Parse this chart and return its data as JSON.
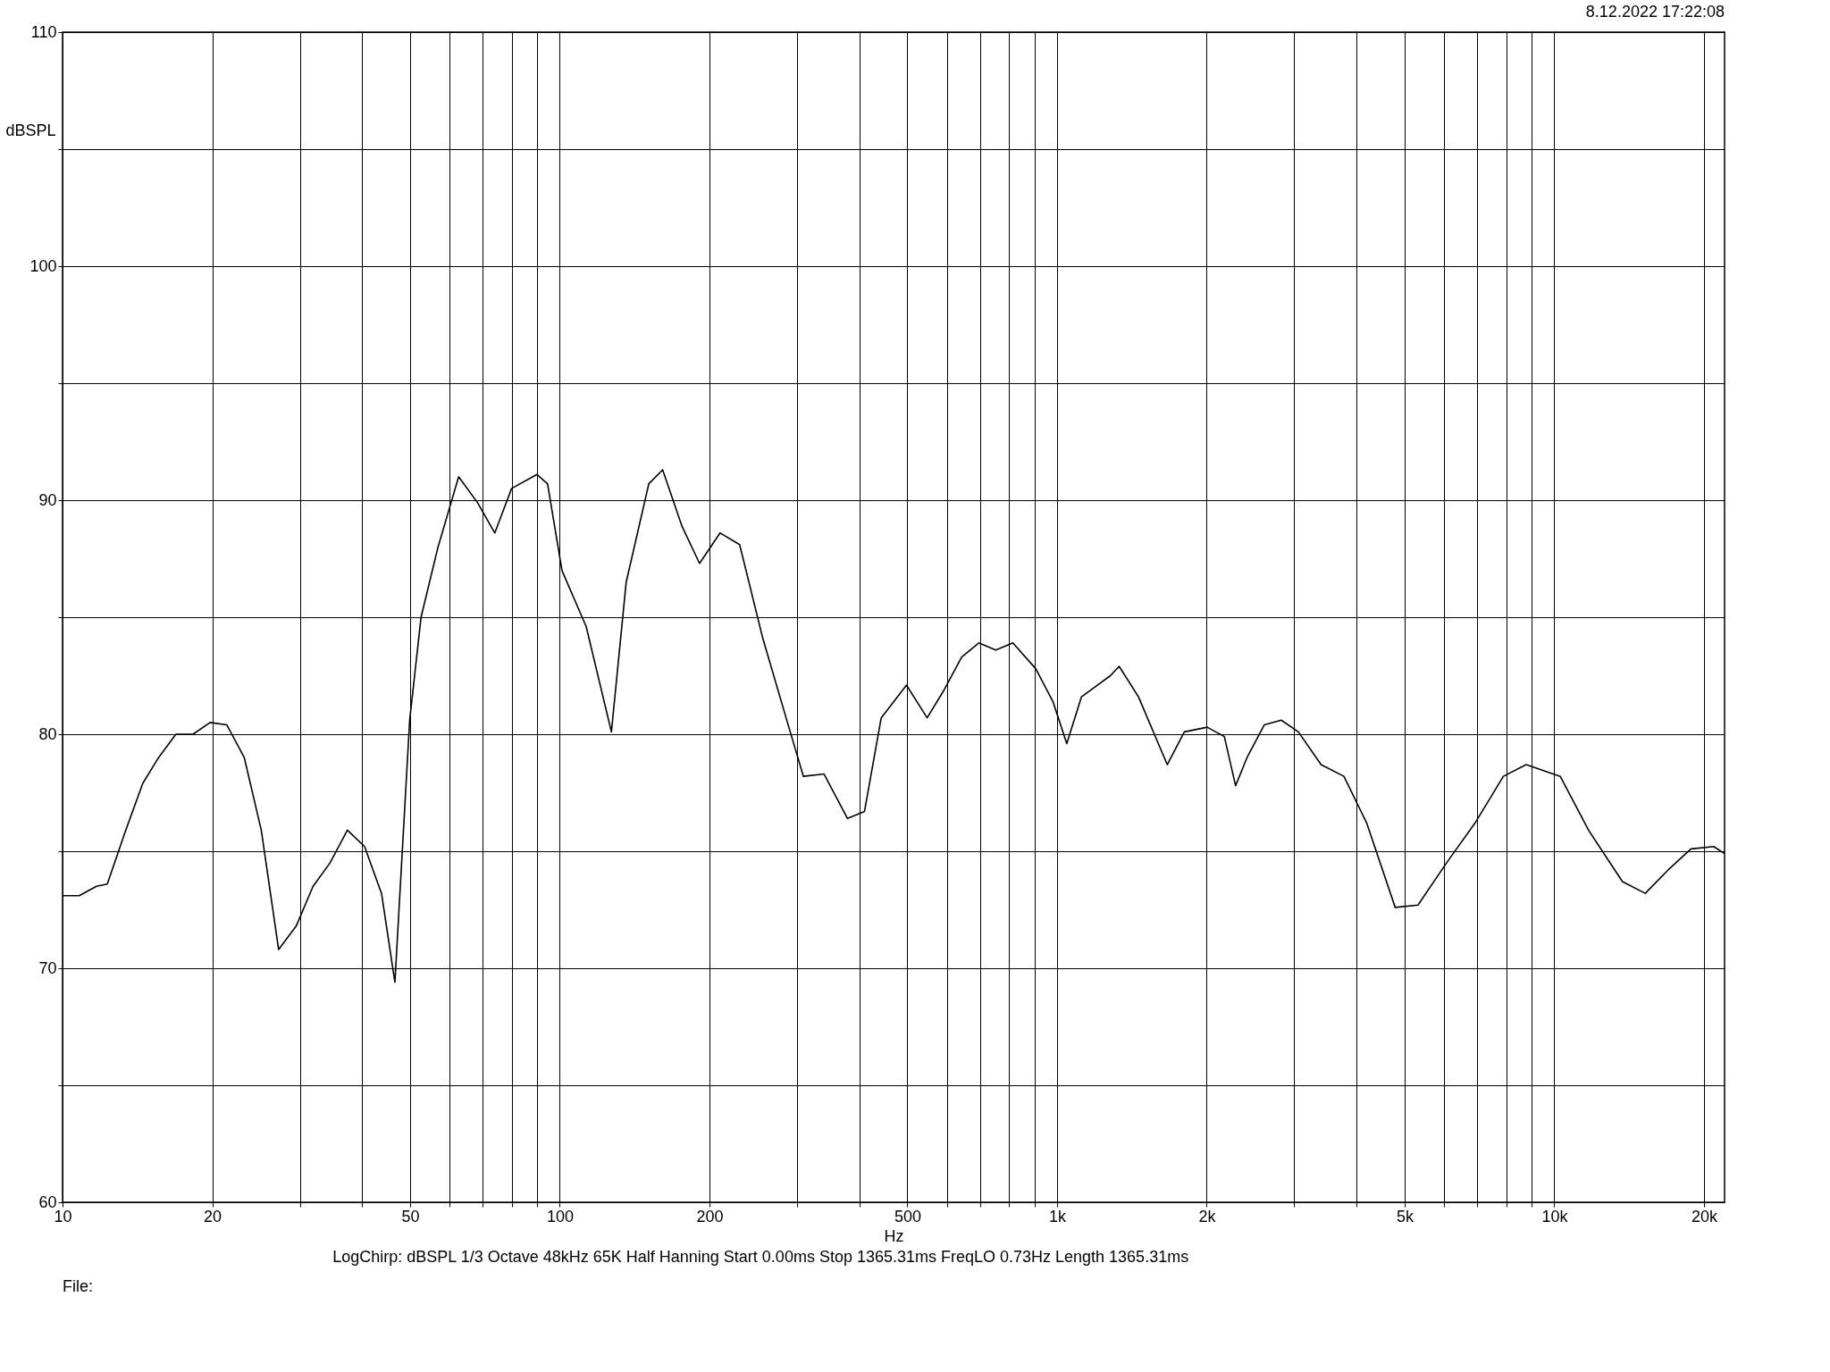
{
  "chart_data": {
    "type": "line",
    "xlabel": "Hz",
    "ylabel": "dBSPL",
    "annotations": [
      "8.12.2022 17:22:08",
      "LogChirp:  dBSPL   1/3 Octave   48kHz   65K   Half Hanning   Start 0.00ms   Stop 1365.31ms   FreqLO 0.73Hz   Length 1365.31ms",
      "File:"
    ],
    "log": "x",
    "grid": true,
    "marker": "none",
    "line_style": "solid",
    "xlim": [
      10,
      22000
    ],
    "ylim": [
      60,
      110
    ],
    "xticks": [
      10,
      20,
      {
        "value": 30,
        "label": null
      },
      {
        "value": 40,
        "label": null
      },
      50,
      {
        "value": 60,
        "label": null
      },
      {
        "value": 70,
        "label": null
      },
      {
        "value": 80,
        "label": null
      },
      {
        "value": 90,
        "label": null
      },
      100,
      200,
      {
        "value": 300,
        "label": null
      },
      {
        "value": 400,
        "label": null
      },
      500,
      {
        "value": 600,
        "label": null
      },
      {
        "value": 700,
        "label": null
      },
      {
        "value": 800,
        "label": null
      },
      {
        "value": 900,
        "label": null
      },
      {
        "value": 1000,
        "label": "1k"
      },
      {
        "value": 2000,
        "label": "2k"
      },
      {
        "value": 3000,
        "label": null
      },
      {
        "value": 4000,
        "label": null
      },
      {
        "value": 5000,
        "label": "5k"
      },
      {
        "value": 6000,
        "label": null
      },
      {
        "value": 7000,
        "label": null
      },
      {
        "value": 8000,
        "label": null
      },
      {
        "value": 9000,
        "label": null
      },
      {
        "value": 10000,
        "label": "10k"
      },
      {
        "value": 20000,
        "label": "20k"
      }
    ],
    "yticks": [
      60,
      {
        "value": 65,
        "label": null
      },
      70,
      {
        "value": 75,
        "label": null
      },
      80,
      {
        "value": 85,
        "label": null
      },
      90,
      {
        "value": 95,
        "label": null
      },
      100,
      {
        "value": 105,
        "label": null
      },
      110
    ],
    "series": [
      {
        "color": "#000000",
        "x": [
          10,
          10.8,
          11.7,
          12.3,
          13.4,
          14.5,
          15.6,
          16.9,
          18.3,
          19.8,
          21.4,
          23.2,
          25.1,
          27.2,
          29.5,
          31.9,
          34.5,
          37.4,
          40.5,
          43.8,
          46.6,
          49.9,
          52.6,
          56.9,
          62.6,
          68.3,
          74,
          80,
          89.9,
          94.5,
          101,
          113,
          127,
          136,
          151,
          161,
          176,
          191,
          210,
          230,
          256,
          287,
          309,
          340,
          379,
          410,
          443,
          498,
          548,
          593,
          643,
          696,
          753,
          815,
          906,
          981,
          1046,
          1120,
          1280,
          1333,
          1458,
          1666,
          1803,
          2005,
          2170,
          2286,
          2410,
          2610,
          2825,
          3057,
          3396,
          3775,
          4196,
          4787,
          5320,
          6070,
          6925,
          7900,
          8780,
          10280,
          11720,
          13710,
          15240,
          16940,
          18830,
          20930,
          22000
        ],
        "values": [
          73.1,
          73.1,
          73.5,
          73.6,
          75.9,
          77.9,
          79.0,
          80.0,
          80.0,
          80.5,
          80.4,
          79.0,
          75.9,
          70.8,
          71.8,
          73.5,
          74.5,
          75.9,
          75.2,
          73.2,
          69.4,
          80.6,
          85.0,
          88.0,
          91.0,
          89.9,
          88.6,
          90.5,
          91.1,
          90.7,
          87.0,
          84.6,
          80.1,
          86.5,
          90.7,
          91.3,
          88.9,
          87.3,
          88.6,
          88.1,
          84.1,
          80.5,
          78.2,
          78.3,
          76.4,
          76.7,
          80.7,
          82.1,
          80.7,
          81.9,
          83.3,
          83.9,
          83.6,
          83.9,
          82.8,
          81.4,
          79.6,
          81.6,
          82.5,
          82.9,
          81.6,
          78.7,
          80.1,
          80.3,
          79.9,
          77.8,
          79.0,
          80.4,
          80.6,
          80.1,
          78.7,
          78.2,
          76.2,
          72.6,
          72.7,
          74.5,
          76.2,
          78.2,
          78.7,
          78.2,
          75.9,
          73.7,
          73.2,
          74.2,
          75.1,
          75.2,
          74.9
        ]
      }
    ]
  }
}
